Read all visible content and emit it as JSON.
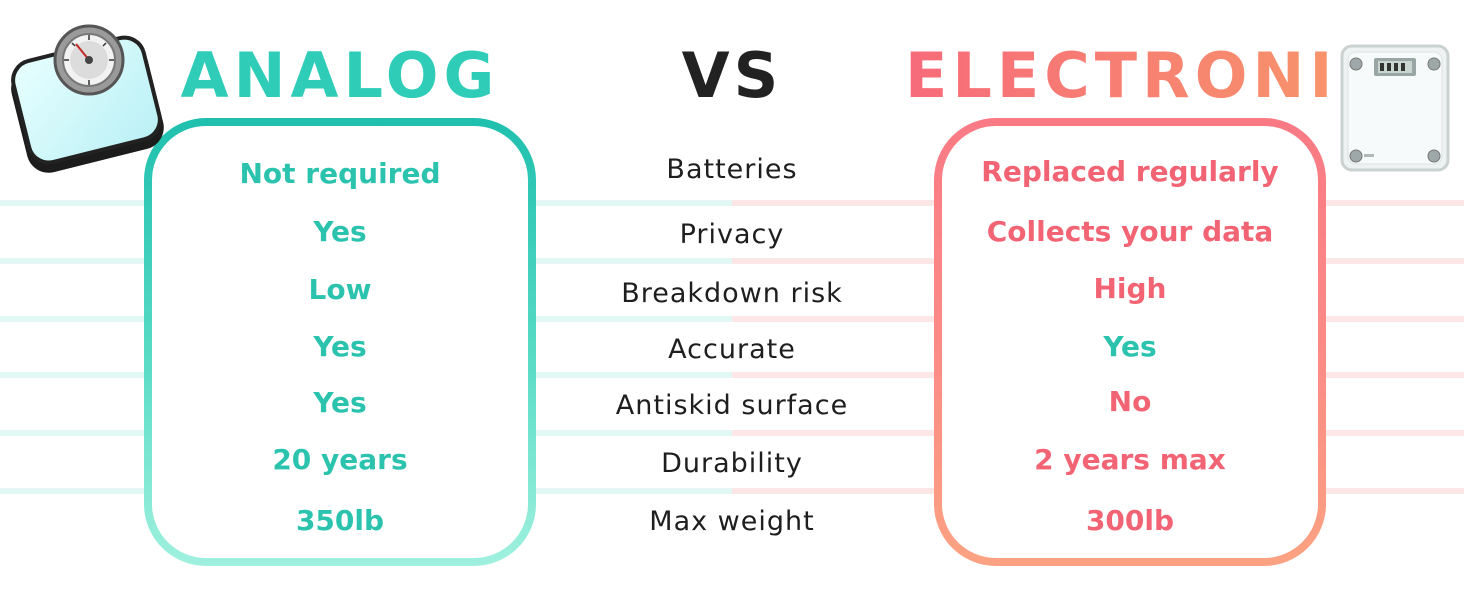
{
  "headings": {
    "left": "ANALOG",
    "middle": "VS",
    "right": "ELECTRONIC"
  },
  "rows": [
    {
      "feature": "Batteries",
      "analog": "Not required",
      "electronic": "Replaced regularly"
    },
    {
      "feature": "Privacy",
      "analog": "Yes",
      "electronic": "Collects your data"
    },
    {
      "feature": "Breakdown risk",
      "analog": "Low",
      "electronic": "High"
    },
    {
      "feature": "Accurate",
      "analog": "Yes",
      "electronic": "Yes"
    },
    {
      "feature": "Antiskid surface",
      "analog": "Yes",
      "electronic": "No"
    },
    {
      "feature": "Durability",
      "analog": "20 years",
      "electronic": "2 years max"
    },
    {
      "feature": "Max weight",
      "analog": "350lb",
      "electronic": "300lb"
    }
  ],
  "colors": {
    "analog_accent": "#2cc3ae",
    "electronic_accent": "#f26474",
    "electronic_gradient_end": "#fca282",
    "text": "#1e1e1e"
  },
  "icons": {
    "left_illustration": "analog-scale-icon",
    "right_illustration": "electronic-scale-icon"
  }
}
